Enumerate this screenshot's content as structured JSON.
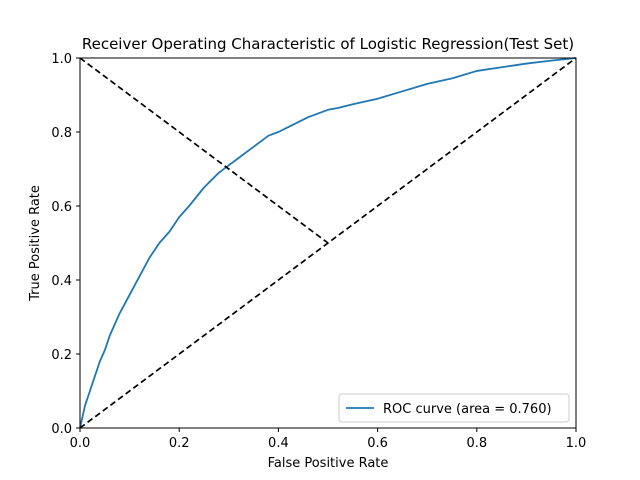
{
  "chart_data": {
    "type": "line",
    "title": "Receiver Operating Characteristic of Logistic Regression(Test Set)",
    "xlabel": "False Positive Rate",
    "ylabel": "True Positive Rate",
    "xlim": [
      0.0,
      1.0
    ],
    "ylim": [
      0.0,
      1.0
    ],
    "xticks": [
      "0.0",
      "0.2",
      "0.4",
      "0.6",
      "0.8",
      "1.0"
    ],
    "yticks": [
      "0.0",
      "0.2",
      "0.4",
      "0.6",
      "0.8",
      "1.0"
    ],
    "grid": false,
    "legend_position": "lower-right",
    "series": [
      {
        "name": "ROC curve (area = 0.760)",
        "color": "#1f77b4",
        "style": "solid",
        "x": [
          0.0,
          0.005,
          0.01,
          0.02,
          0.03,
          0.04,
          0.05,
          0.06,
          0.08,
          0.1,
          0.12,
          0.14,
          0.16,
          0.18,
          0.2,
          0.22,
          0.25,
          0.28,
          0.3,
          0.32,
          0.35,
          0.38,
          0.4,
          0.43,
          0.46,
          0.5,
          0.52,
          0.55,
          0.6,
          0.65,
          0.7,
          0.75,
          0.8,
          0.85,
          0.9,
          0.95,
          1.0
        ],
        "y": [
          0.0,
          0.03,
          0.06,
          0.1,
          0.14,
          0.18,
          0.21,
          0.25,
          0.31,
          0.36,
          0.41,
          0.46,
          0.5,
          0.53,
          0.57,
          0.6,
          0.65,
          0.69,
          0.71,
          0.73,
          0.76,
          0.79,
          0.8,
          0.82,
          0.84,
          0.86,
          0.865,
          0.875,
          0.89,
          0.91,
          0.93,
          0.945,
          0.965,
          0.975,
          0.985,
          0.993,
          1.0
        ]
      },
      {
        "name": "",
        "color": "#000000",
        "style": "dashed",
        "x": [
          0.0,
          1.0
        ],
        "y": [
          0.0,
          1.0
        ]
      },
      {
        "name": "",
        "color": "#000000",
        "style": "dashed",
        "x": [
          0.0,
          0.5
        ],
        "y": [
          1.0,
          0.5
        ]
      }
    ]
  }
}
